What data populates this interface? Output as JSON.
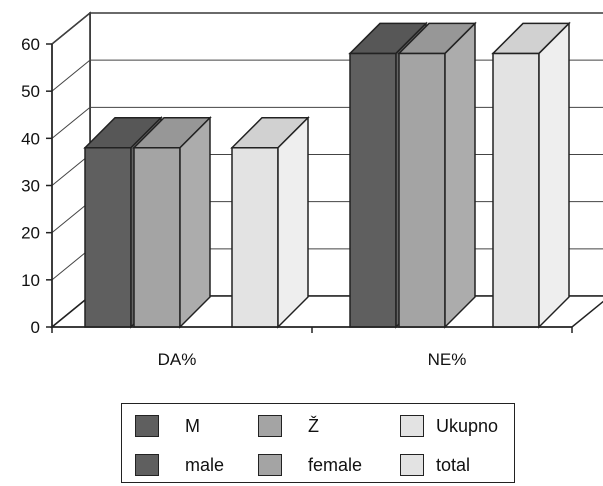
{
  "chart_data": {
    "type": "bar",
    "categories": [
      "DA%",
      "NE%"
    ],
    "series": [
      {
        "name": "M",
        "values": [
          38,
          58
        ],
        "color": "#5f5f5f"
      },
      {
        "name": "Ž",
        "values": [
          38,
          58
        ],
        "color": "#a4a4a4"
      },
      {
        "name": "Ukupno",
        "values": [
          38,
          58
        ],
        "color": "#e3e3e3"
      }
    ],
    "ylim": [
      0,
      60
    ],
    "yticks": [
      0,
      10,
      20,
      30,
      40,
      50,
      60
    ],
    "grid": true,
    "three_d": true,
    "legend_position": "bottom"
  },
  "legend": {
    "rows": [
      [
        {
          "label": "M",
          "color": "#5f5f5f"
        },
        {
          "label": "Ž",
          "color": "#a4a4a4"
        },
        {
          "label": "Ukupno",
          "color": "#e3e3e3"
        }
      ],
      [
        {
          "label": "male",
          "color": "#5f5f5f"
        },
        {
          "label": "female",
          "color": "#a4a4a4"
        },
        {
          "label": "total",
          "color": "#e3e3e3"
        }
      ]
    ]
  }
}
